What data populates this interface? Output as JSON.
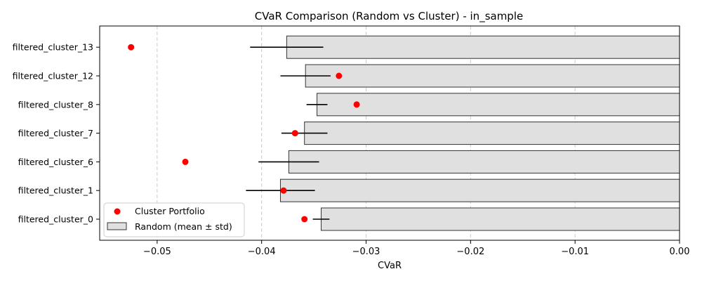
{
  "chart_data": {
    "type": "bar",
    "orientation": "horizontal",
    "title": "CVaR Comparison (Random vs Cluster) - in_sample",
    "xlabel": "CVaR",
    "ylabel": "",
    "xlim": [
      -0.0555,
      0.0
    ],
    "xticks": [
      -0.05,
      -0.04,
      -0.03,
      -0.02,
      -0.01,
      0.0
    ],
    "xtick_labels": [
      "−0.05",
      "−0.04",
      "−0.03",
      "−0.02",
      "−0.01",
      "0.00"
    ],
    "grid": "x-dashed",
    "legend_placement": "lower-left",
    "categories": [
      "filtered_cluster_0",
      "filtered_cluster_1",
      "filtered_cluster_6",
      "filtered_cluster_7",
      "filtered_cluster_8",
      "filtered_cluster_12",
      "filtered_cluster_13"
    ],
    "series": [
      {
        "name": "Random (mean ± std)",
        "kind": "bar_with_error",
        "values": [
          -0.0343,
          -0.0382,
          -0.0374,
          -0.0359,
          -0.0347,
          -0.0358,
          -0.0376
        ],
        "errors": [
          0.0008,
          0.0033,
          0.0029,
          0.0022,
          0.001,
          0.0024,
          0.0035
        ],
        "color": "#e0e0e0",
        "edgecolor": "#333333"
      },
      {
        "name": "Cluster Portfolio",
        "kind": "scatter",
        "values": [
          -0.0359,
          -0.0379,
          -0.0473,
          -0.0368,
          -0.0309,
          -0.0326,
          -0.0525
        ],
        "color": "#ff0000"
      }
    ]
  }
}
